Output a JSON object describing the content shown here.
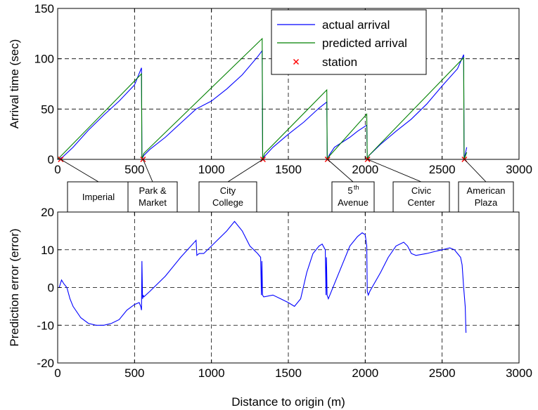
{
  "chart_data": [
    {
      "type": "line",
      "xlabel": "",
      "ylabel": "Arrival time (sec)",
      "xlim": [
        0,
        3000
      ],
      "ylim": [
        0,
        150
      ],
      "xticks": [
        "0",
        "500",
        "1000",
        "1500",
        "2000",
        "2500",
        "3000"
      ],
      "yticks": [
        "0",
        "50",
        "100",
        "150"
      ],
      "grid": true,
      "legend_position": "top-right",
      "legend": [
        "actual arrival",
        "predicted arrival",
        "station"
      ],
      "colors": {
        "actual": "#0000ff",
        "predicted": "#008000",
        "station": "#ff0000",
        "grid": "#000000"
      },
      "series": [
        {
          "name": "actual arrival",
          "x": [
            0,
            30,
            100,
            200,
            300,
            400,
            500,
            545,
            548,
            560,
            600,
            700,
            800,
            900,
            1000,
            1100,
            1200,
            1300,
            1330,
            1333,
            1345,
            1400,
            1500,
            1600,
            1700,
            1750,
            1753,
            1765,
            1800,
            1900,
            1950,
            2000,
            2010,
            2013,
            2025,
            2100,
            2200,
            2300,
            2400,
            2500,
            2600,
            2640,
            2643,
            2660
          ],
          "y": [
            0,
            2,
            12,
            29,
            44,
            58,
            74,
            91,
            0,
            4,
            10,
            22,
            36,
            50,
            58,
            70,
            84,
            102,
            108,
            0,
            3,
            12,
            25,
            37,
            51,
            57,
            0,
            4,
            12,
            22,
            28,
            33,
            34,
            0,
            4,
            15,
            28,
            40,
            55,
            73,
            90,
            104,
            0,
            12
          ]
        },
        {
          "name": "predicted arrival",
          "x": [
            0,
            545,
            548,
            560,
            1330,
            1333,
            1345,
            1750,
            1753,
            1765,
            2010,
            2013,
            2025,
            2640,
            2643,
            2660
          ],
          "y": [
            0,
            85,
            0,
            6,
            120,
            0,
            6,
            69,
            0,
            3,
            45,
            0,
            4,
            101,
            0,
            7
          ]
        },
        {
          "name": "station",
          "x": [
            20,
            555,
            1335,
            1755,
            2015,
            2645
          ],
          "y": [
            0,
            0,
            0,
            0,
            0,
            0
          ]
        }
      ],
      "annotations": [
        {
          "lines": [
            "Imperial"
          ],
          "x": 20
        },
        {
          "lines": [
            "Park &",
            "Market"
          ],
          "x": 555
        },
        {
          "lines": [
            "City",
            "College"
          ],
          "x": 1335
        },
        {
          "lines": [
            "5th",
            "Avenue"
          ],
          "x": 1755,
          "superscript": "th"
        },
        {
          "lines": [
            "Civic",
            "Center"
          ],
          "x": 2015
        },
        {
          "lines": [
            "American",
            "Plaza"
          ],
          "x": 2645
        }
      ]
    },
    {
      "type": "line",
      "xlabel": "Distance to origin (m)",
      "ylabel": "Prediction error (error)",
      "xlim": [
        0,
        3000
      ],
      "ylim": [
        -20,
        20
      ],
      "xticks": [
        "0",
        "500",
        "1000",
        "1500",
        "2000",
        "2500",
        "3000"
      ],
      "yticks": [
        "-20",
        "-10",
        "0",
        "10",
        "20"
      ],
      "grid": true,
      "colors": {
        "line": "#0000ff"
      },
      "series": [
        {
          "name": "prediction error",
          "x": [
            10,
            25,
            40,
            60,
            80,
            100,
            150,
            200,
            250,
            300,
            350,
            400,
            450,
            500,
            530,
            540,
            545,
            548,
            552,
            556,
            560,
            600,
            700,
            800,
            900,
            905,
            920,
            950,
            1000,
            1050,
            1100,
            1150,
            1200,
            1250,
            1300,
            1320,
            1325,
            1328,
            1332,
            1340,
            1400,
            1450,
            1500,
            1540,
            1580,
            1620,
            1660,
            1700,
            1720,
            1740,
            1745,
            1748,
            1752,
            1760,
            1780,
            1800,
            1850,
            1900,
            1950,
            1980,
            2000,
            2010,
            2013,
            2020,
            2030,
            2100,
            2150,
            2200,
            2250,
            2275,
            2300,
            2330,
            2400,
            2450,
            2500,
            2550,
            2580,
            2600,
            2620,
            2630,
            2640,
            2650,
            2655
          ],
          "y": [
            0,
            2,
            1,
            0,
            -3,
            -5,
            -8,
            -9.5,
            -10,
            -10,
            -9.5,
            -8.5,
            -6,
            -4.5,
            -4,
            -5,
            -6,
            7,
            -3,
            -2,
            -2.5,
            -1,
            3,
            8,
            12.5,
            8.5,
            9,
            9,
            11,
            13,
            15,
            17.5,
            15,
            11,
            9,
            8,
            -2,
            7,
            -2,
            -2.5,
            -2,
            -3,
            -4,
            -5,
            -3,
            4,
            9,
            11,
            11.5,
            10,
            -2,
            8,
            -2,
            -3,
            -1,
            1,
            6,
            11,
            13.5,
            14.5,
            14,
            11,
            -1,
            -2,
            -1,
            4,
            8,
            11,
            12,
            11,
            9,
            8.5,
            9,
            9.5,
            10,
            10.5,
            10,
            9,
            8,
            6,
            0,
            -5,
            -12
          ]
        }
      ]
    }
  ]
}
